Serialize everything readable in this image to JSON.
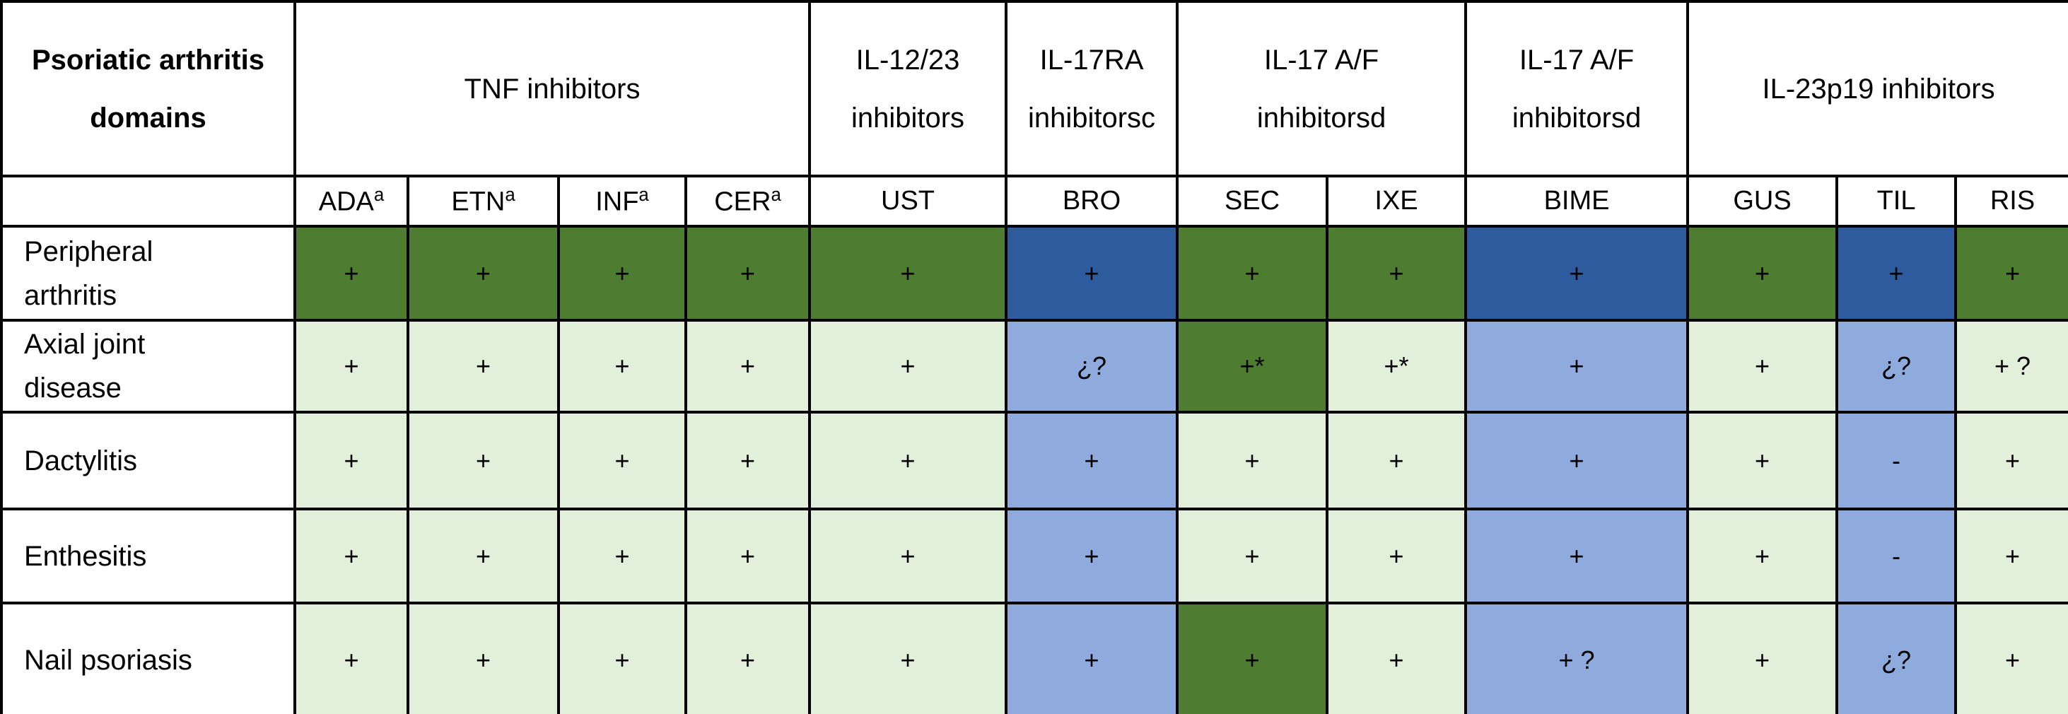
{
  "table": {
    "corner_header": "Psoriatic arthritis\ndomains",
    "groups": [
      {
        "label": "TNF inhibitors",
        "colspan": 4
      },
      {
        "label": "IL-12/23\ninhibitors",
        "colspan": 1
      },
      {
        "label": "IL-17RA\ninhibitorsc",
        "colspan": 1
      },
      {
        "label": "IL-17 A/F\ninhibitorsd",
        "colspan": 2
      },
      {
        "label": "IL-17 A/F\ninhibitorsd",
        "colspan": 1
      },
      {
        "label": "IL-23p19 inhibitors",
        "colspan": 3
      }
    ],
    "columns": [
      {
        "id": "ada",
        "label": "ADA",
        "sup": "a"
      },
      {
        "id": "etn",
        "label": "ETN",
        "sup": "a"
      },
      {
        "id": "inf",
        "label": "INF",
        "sup": "a"
      },
      {
        "id": "cer",
        "label": "CER",
        "sup": "a"
      },
      {
        "id": "ust",
        "label": "UST",
        "sup": ""
      },
      {
        "id": "bro",
        "label": "BRO",
        "sup": ""
      },
      {
        "id": "sec",
        "label": "SEC",
        "sup": ""
      },
      {
        "id": "ixe",
        "label": "IXE",
        "sup": ""
      },
      {
        "id": "bime",
        "label": "BIME",
        "sup": ""
      },
      {
        "id": "gus",
        "label": "GUS",
        "sup": ""
      },
      {
        "id": "til",
        "label": "TIL",
        "sup": ""
      },
      {
        "id": "ris",
        "label": "RIS",
        "sup": ""
      }
    ],
    "rows": [
      {
        "id": "peripheral-arthritis",
        "label": "Peripheral\n arthritis",
        "cells": [
          {
            "text": "+",
            "color": "dark_green"
          },
          {
            "text": "+",
            "color": "dark_green"
          },
          {
            "text": "+",
            "color": "dark_green"
          },
          {
            "text": "+",
            "color": "dark_green"
          },
          {
            "text": "+",
            "color": "dark_green"
          },
          {
            "text": "+",
            "color": "dark_blue"
          },
          {
            "text": "+",
            "color": "dark_green"
          },
          {
            "text": "+",
            "color": "dark_green"
          },
          {
            "text": "+",
            "color": "dark_blue"
          },
          {
            "text": "+",
            "color": "dark_green"
          },
          {
            "text": "+",
            "color": "dark_blue"
          },
          {
            "text": "+",
            "color": "dark_green"
          }
        ]
      },
      {
        "id": "axial-joint-disease",
        "label": "Axial joint\n disease",
        "cells": [
          {
            "text": "+",
            "color": "light_green"
          },
          {
            "text": "+",
            "color": "light_green"
          },
          {
            "text": "+",
            "color": "light_green"
          },
          {
            "text": "+",
            "color": "light_green"
          },
          {
            "text": "+",
            "color": "light_green"
          },
          {
            "text": "¿?",
            "color": "light_blue"
          },
          {
            "text": "+*",
            "color": "dark_green"
          },
          {
            "text": "+*",
            "color": "light_green"
          },
          {
            "text": "+",
            "color": "light_blue"
          },
          {
            "text": "+",
            "color": "light_green"
          },
          {
            "text": "¿?",
            "color": "light_blue"
          },
          {
            "text": "+ ?",
            "color": "light_green"
          }
        ]
      },
      {
        "id": "dactylitis",
        "label": "Dactylitis",
        "cells": [
          {
            "text": "+",
            "color": "light_green"
          },
          {
            "text": "+",
            "color": "light_green"
          },
          {
            "text": "+",
            "color": "light_green"
          },
          {
            "text": "+",
            "color": "light_green"
          },
          {
            "text": "+",
            "color": "light_green"
          },
          {
            "text": "+",
            "color": "light_blue"
          },
          {
            "text": "+",
            "color": "light_green"
          },
          {
            "text": "+",
            "color": "light_green"
          },
          {
            "text": "+",
            "color": "light_blue"
          },
          {
            "text": "+",
            "color": "light_green"
          },
          {
            "text": "-",
            "color": "light_blue"
          },
          {
            "text": "+",
            "color": "light_green"
          }
        ]
      },
      {
        "id": "enthesitis",
        "label": "Enthesitis",
        "cells": [
          {
            "text": "+",
            "color": "light_green"
          },
          {
            "text": "+",
            "color": "light_green"
          },
          {
            "text": "+",
            "color": "light_green"
          },
          {
            "text": "+",
            "color": "light_green"
          },
          {
            "text": "+",
            "color": "light_green"
          },
          {
            "text": "+",
            "color": "light_blue"
          },
          {
            "text": "+",
            "color": "light_green"
          },
          {
            "text": "+",
            "color": "light_green"
          },
          {
            "text": "+",
            "color": "light_blue"
          },
          {
            "text": "+",
            "color": "light_green"
          },
          {
            "text": "-",
            "color": "light_blue"
          },
          {
            "text": "+",
            "color": "light_green"
          }
        ]
      },
      {
        "id": "nail-psoriasis",
        "label": "Nail psoriasis",
        "cells": [
          {
            "text": "+",
            "color": "light_green"
          },
          {
            "text": "+",
            "color": "light_green"
          },
          {
            "text": "+",
            "color": "light_green"
          },
          {
            "text": "+",
            "color": "light_green"
          },
          {
            "text": "+",
            "color": "light_green"
          },
          {
            "text": "+",
            "color": "light_blue"
          },
          {
            "text": "+",
            "color": "dark_green"
          },
          {
            "text": "+",
            "color": "light_green"
          },
          {
            "text": "+ ?",
            "color": "light_blue"
          },
          {
            "text": "+",
            "color": "light_green"
          },
          {
            "text": "¿?",
            "color": "light_blue"
          },
          {
            "text": "+",
            "color": "light_green"
          }
        ]
      }
    ]
  },
  "colors": {
    "dark_green": "#4E7D31",
    "light_green": "#E2EFDA",
    "dark_blue": "#2E5B9D",
    "light_blue": "#8FAADC",
    "border": "#000000",
    "text": "#000000"
  }
}
